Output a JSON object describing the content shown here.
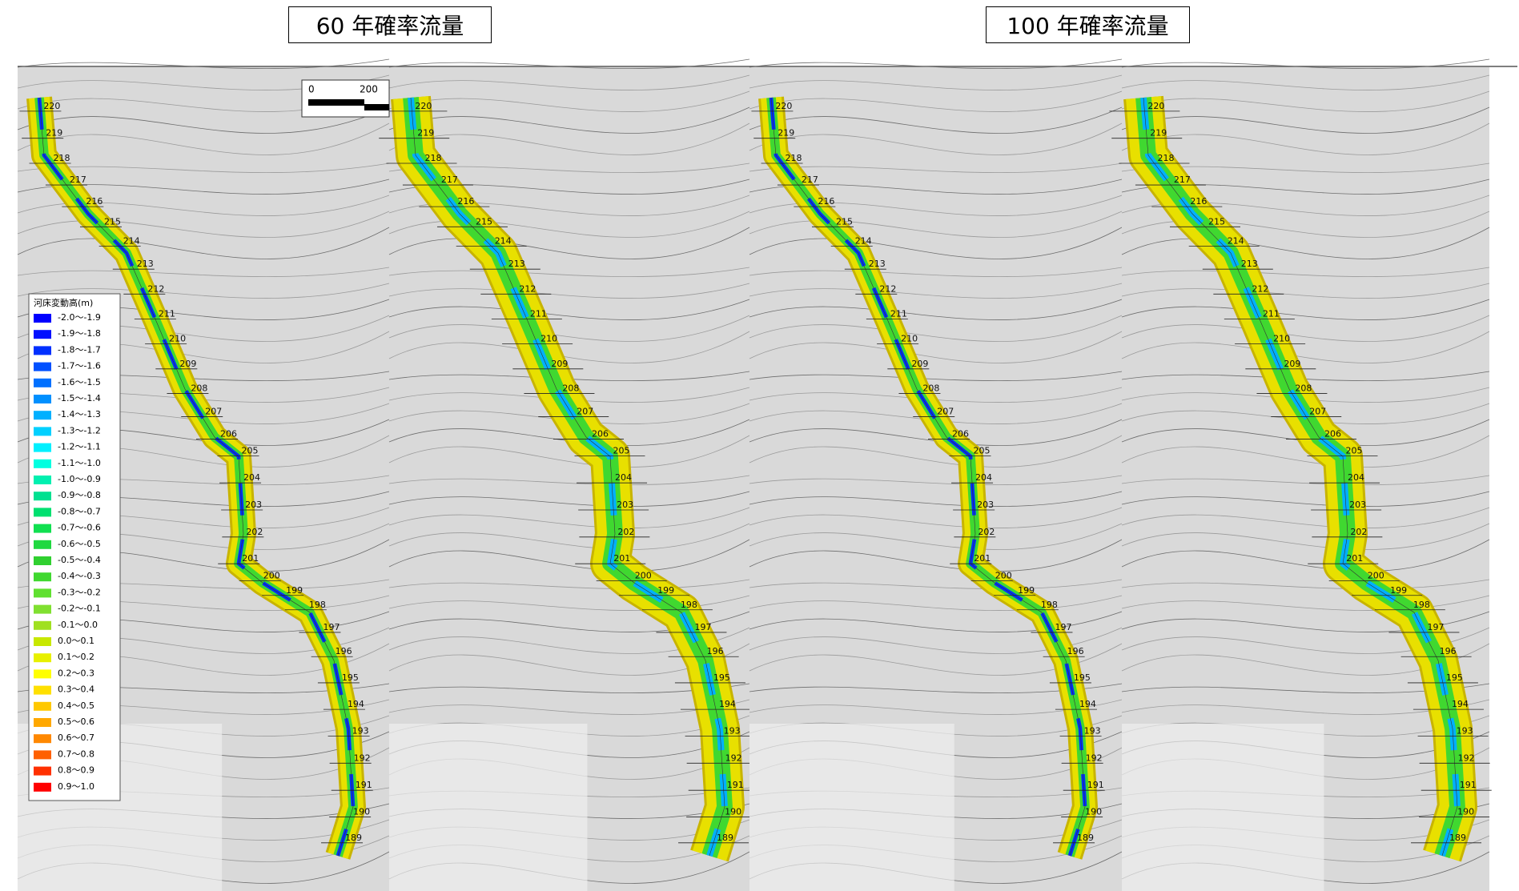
{
  "headers": [
    {
      "label": "60 年確率流量"
    },
    {
      "label": "100 年確率流量"
    }
  ],
  "scale_bar": {
    "labels": [
      "0",
      "200"
    ]
  },
  "legend": {
    "title": "河床変動高(m)",
    "items": [
      {
        "label": "-2.0～-1.9",
        "color": "#0000ff"
      },
      {
        "label": "-1.9～-1.8",
        "color": "#0010ff"
      },
      {
        "label": "-1.8～-1.7",
        "color": "#0030ff"
      },
      {
        "label": "-1.7～-1.6",
        "color": "#0050ff"
      },
      {
        "label": "-1.6～-1.5",
        "color": "#0070ff"
      },
      {
        "label": "-1.5～-1.4",
        "color": "#0090ff"
      },
      {
        "label": "-1.4～-1.3",
        "color": "#00b0ff"
      },
      {
        "label": "-1.3～-1.2",
        "color": "#00d0ff"
      },
      {
        "label": "-1.2～-1.1",
        "color": "#00f0ff"
      },
      {
        "label": "-1.1～-1.0",
        "color": "#00ffe0"
      },
      {
        "label": "-1.0～-0.9",
        "color": "#00f0b0"
      },
      {
        "label": "-0.9～-0.8",
        "color": "#00e090"
      },
      {
        "label": "-0.8～-0.7",
        "color": "#00e070"
      },
      {
        "label": "-0.7～-0.6",
        "color": "#10e050"
      },
      {
        "label": "-0.6～-0.5",
        "color": "#20d840"
      },
      {
        "label": "-0.5～-0.4",
        "color": "#30d030"
      },
      {
        "label": "-0.4～-0.3",
        "color": "#40d830"
      },
      {
        "label": "-0.3～-0.2",
        "color": "#60e030"
      },
      {
        "label": "-0.2～-0.1",
        "color": "#80e030"
      },
      {
        "label": "-0.1～0.0",
        "color": "#a0e020"
      },
      {
        "label": "0.0～0.1",
        "color": "#c8e800"
      },
      {
        "label": "0.1～0.2",
        "color": "#e8f000"
      },
      {
        "label": "0.2～0.3",
        "color": "#ffff00"
      },
      {
        "label": "0.3～0.4",
        "color": "#ffe000"
      },
      {
        "label": "0.4～0.5",
        "color": "#ffc800"
      },
      {
        "label": "0.5～0.6",
        "color": "#ffa800"
      },
      {
        "label": "0.6～0.7",
        "color": "#ff8800"
      },
      {
        "label": "0.7～0.8",
        "color": "#ff6000"
      },
      {
        "label": "0.8～0.9",
        "color": "#ff3000"
      },
      {
        "label": "0.9～1.0",
        "color": "#ff0000"
      }
    ]
  },
  "stations": [
    "220",
    "219",
    "218",
    "217",
    "216",
    "215",
    "214",
    "213",
    "212",
    "211",
    "210",
    "209",
    "208",
    "207",
    "206",
    "205",
    "204",
    "203",
    "202",
    "201",
    "200",
    "199",
    "198",
    "197",
    "196",
    "195",
    "194",
    "193",
    "192",
    "191",
    "190",
    "189"
  ]
}
